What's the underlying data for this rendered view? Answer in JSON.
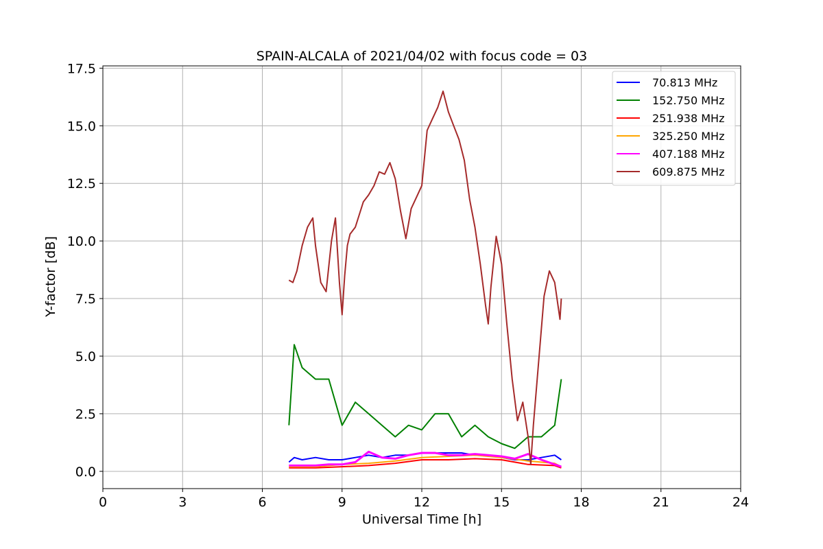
{
  "chart_data": {
    "type": "line",
    "title": "SPAIN-ALCALA of 2021/04/02 with focus code = 03",
    "xlabel": "Universal Time [h]",
    "ylabel": "Y-factor [dB]",
    "xlim": [
      0,
      24
    ],
    "ylim": [
      -0.75,
      17.6
    ],
    "xticks": [
      0,
      3,
      6,
      9,
      12,
      15,
      18,
      21,
      24
    ],
    "yticks": [
      0.0,
      2.5,
      5.0,
      7.5,
      10.0,
      12.5,
      15.0,
      17.5
    ],
    "xtick_labels": [
      "0",
      "3",
      "6",
      "9",
      "12",
      "15",
      "18",
      "21",
      "24"
    ],
    "ytick_labels": [
      "0.0",
      "2.5",
      "5.0",
      "7.5",
      "10.0",
      "12.5",
      "15.0",
      "17.5"
    ],
    "grid": true,
    "legend_position": "upper right",
    "series": [
      {
        "name": "70.813 MHz",
        "color": "#0000ff",
        "x": [
          7.0,
          7.2,
          7.5,
          8.0,
          8.5,
          9.0,
          9.5,
          10.0,
          10.5,
          11.0,
          11.5,
          12.0,
          12.5,
          13.0,
          13.5,
          14.0,
          14.5,
          15.0,
          15.5,
          16.0,
          16.5,
          17.0,
          17.25
        ],
        "values": [
          0.4,
          0.6,
          0.5,
          0.6,
          0.5,
          0.5,
          0.6,
          0.7,
          0.6,
          0.7,
          0.7,
          0.8,
          0.8,
          0.8,
          0.8,
          0.7,
          0.7,
          0.6,
          0.5,
          0.5,
          0.6,
          0.7,
          0.5
        ]
      },
      {
        "name": "152.750 MHz",
        "color": "#008000",
        "x": [
          7.0,
          7.2,
          7.5,
          8.0,
          8.5,
          9.0,
          9.5,
          10.0,
          10.5,
          11.0,
          11.5,
          12.0,
          12.5,
          13.0,
          13.5,
          14.0,
          14.5,
          15.0,
          15.5,
          16.0,
          16.5,
          17.0,
          17.25
        ],
        "values": [
          2.0,
          5.5,
          4.5,
          4.0,
          4.0,
          2.0,
          3.0,
          2.5,
          2.0,
          1.5,
          2.0,
          1.8,
          2.5,
          2.5,
          1.5,
          2.0,
          1.5,
          1.2,
          1.0,
          1.5,
          1.5,
          2.0,
          4.0
        ]
      },
      {
        "name": "251.938 MHz",
        "color": "#ff0000",
        "x": [
          7.0,
          8.0,
          9.0,
          10.0,
          11.0,
          12.0,
          13.0,
          14.0,
          15.0,
          16.0,
          17.0,
          17.25
        ],
        "values": [
          0.15,
          0.15,
          0.2,
          0.25,
          0.35,
          0.5,
          0.5,
          0.55,
          0.5,
          0.3,
          0.25,
          0.15
        ]
      },
      {
        "name": "325.250 MHz",
        "color": "#ffa500",
        "x": [
          7.0,
          8.0,
          9.0,
          10.0,
          11.0,
          12.0,
          13.0,
          14.0,
          15.0,
          16.0,
          17.0,
          17.25
        ],
        "values": [
          0.2,
          0.2,
          0.3,
          0.35,
          0.45,
          0.6,
          0.65,
          0.7,
          0.6,
          0.45,
          0.35,
          0.2
        ]
      },
      {
        "name": "407.188 MHz",
        "color": "#ff00ff",
        "x": [
          7.0,
          7.5,
          8.0,
          8.5,
          9.0,
          9.5,
          10.0,
          10.5,
          11.0,
          11.5,
          12.0,
          12.5,
          13.0,
          13.5,
          14.0,
          14.5,
          15.0,
          15.5,
          16.0,
          16.5,
          17.0,
          17.25
        ],
        "values": [
          0.25,
          0.25,
          0.25,
          0.3,
          0.3,
          0.4,
          0.85,
          0.6,
          0.55,
          0.7,
          0.8,
          0.8,
          0.7,
          0.7,
          0.75,
          0.7,
          0.65,
          0.55,
          0.75,
          0.5,
          0.3,
          0.2
        ]
      },
      {
        "name": "609.875 MHz",
        "color": "#a52a2a",
        "x": [
          7.0,
          7.15,
          7.3,
          7.5,
          7.7,
          7.9,
          8.0,
          8.2,
          8.4,
          8.6,
          8.75,
          8.9,
          9.0,
          9.1,
          9.2,
          9.3,
          9.5,
          9.8,
          10.0,
          10.2,
          10.4,
          10.6,
          10.8,
          11.0,
          11.2,
          11.4,
          11.6,
          11.8,
          12.0,
          12.2,
          12.4,
          12.6,
          12.8,
          13.0,
          13.2,
          13.4,
          13.6,
          13.8,
          14.0,
          14.2,
          14.4,
          14.5,
          14.6,
          14.8,
          15.0,
          15.2,
          15.4,
          15.6,
          15.8,
          16.0,
          16.1,
          16.2,
          16.4,
          16.6,
          16.8,
          17.0,
          17.2,
          17.25
        ],
        "values": [
          8.3,
          8.2,
          8.7,
          9.8,
          10.6,
          11.0,
          9.8,
          8.2,
          7.8,
          10.0,
          11.0,
          8.2,
          6.8,
          8.5,
          9.8,
          10.3,
          10.6,
          11.7,
          12.0,
          12.4,
          13.0,
          12.9,
          13.4,
          12.7,
          11.3,
          10.1,
          11.4,
          11.9,
          12.4,
          14.8,
          15.3,
          15.8,
          16.5,
          15.6,
          15.0,
          14.4,
          13.5,
          11.8,
          10.6,
          9.0,
          7.2,
          6.4,
          8.0,
          10.2,
          9.0,
          6.4,
          4.0,
          2.2,
          3.0,
          1.5,
          0.3,
          2.0,
          4.8,
          7.6,
          8.7,
          8.2,
          6.6,
          7.5
        ]
      }
    ]
  }
}
